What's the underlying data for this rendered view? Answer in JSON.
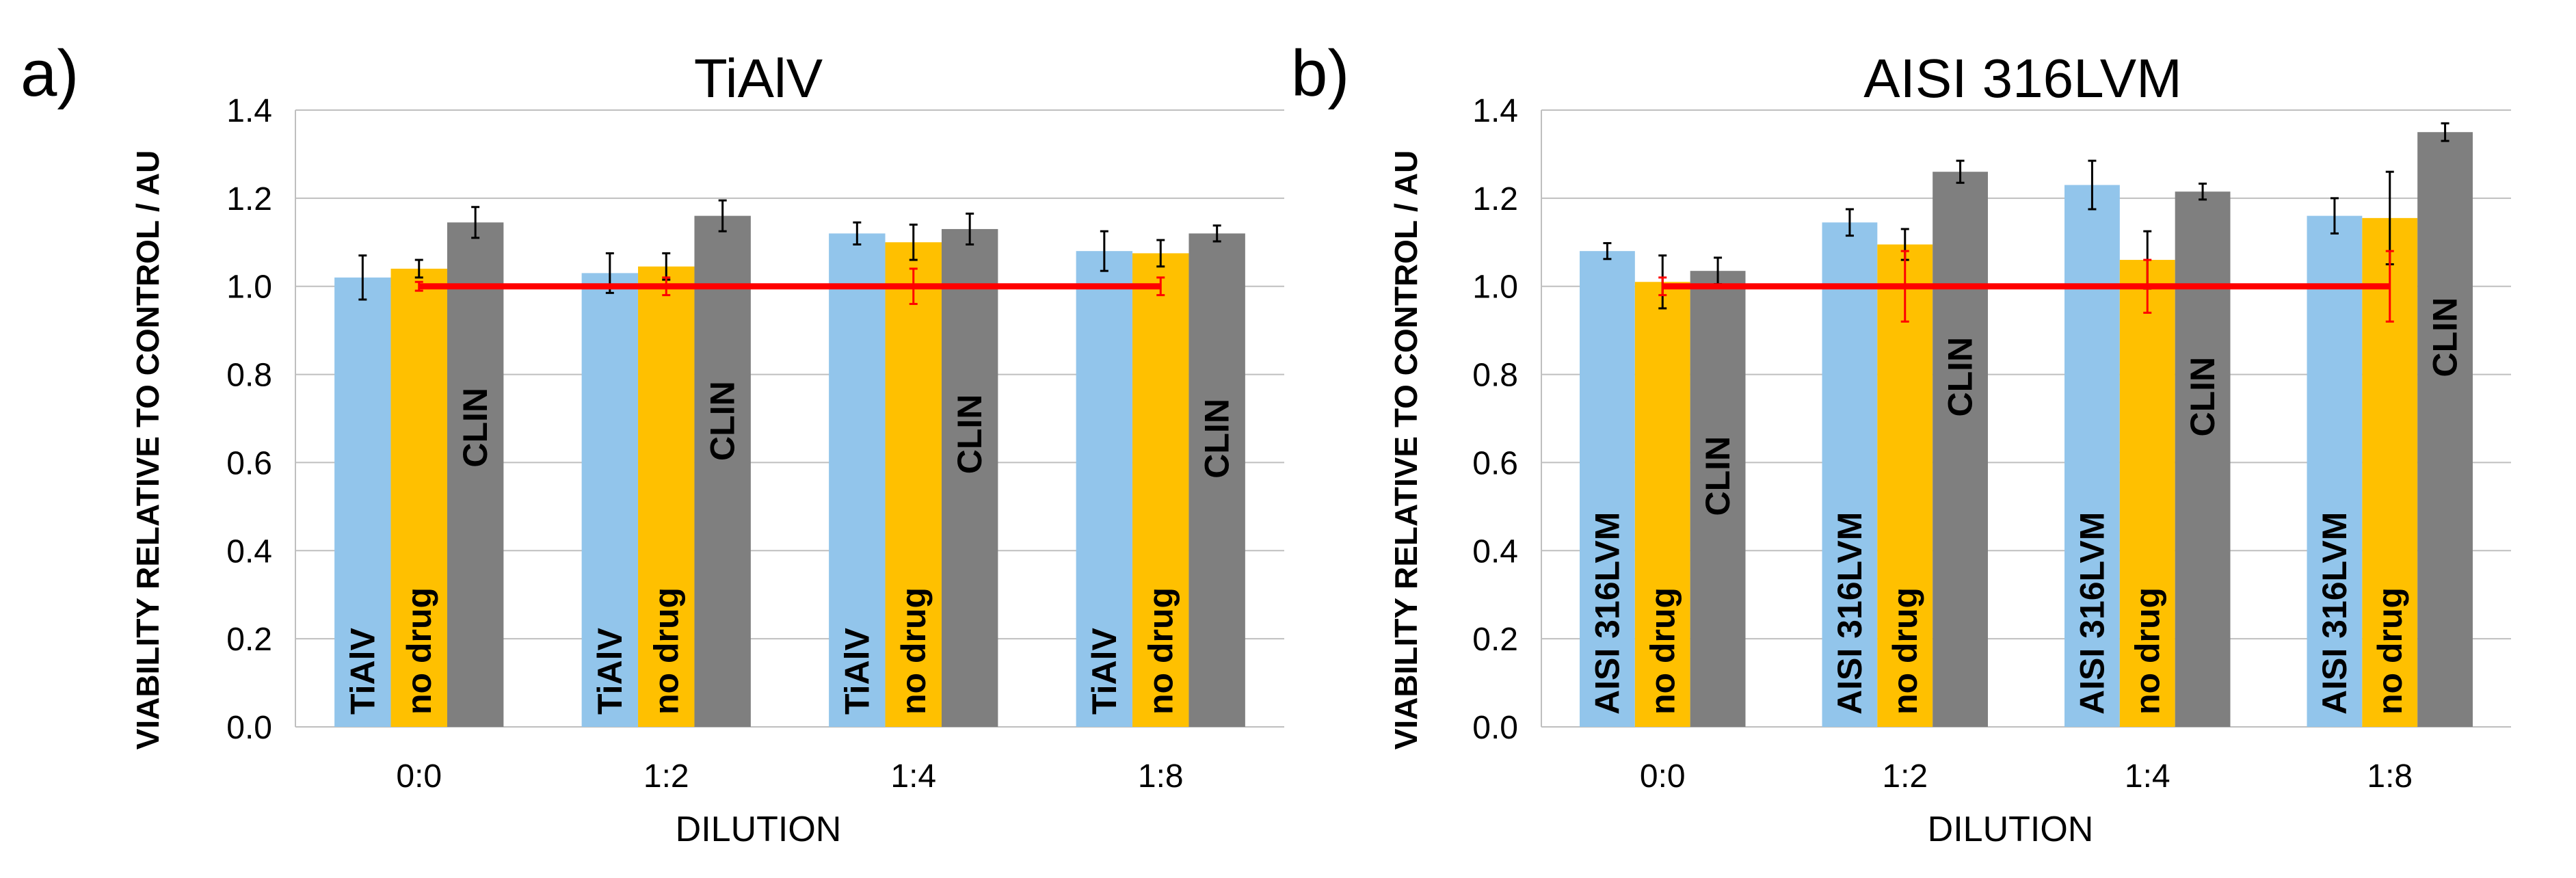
{
  "panels": [
    {
      "letter": "a)"
    },
    {
      "letter": "b)"
    }
  ],
  "colors": {
    "series": [
      "#92c5eb",
      "#ffc000",
      "#7f7f7f"
    ],
    "reference": "#ff0000",
    "grid": "#bfbfbf",
    "error_bar": "#000000",
    "reference_error_bar": "#ff0000"
  },
  "chart_data": [
    {
      "type": "bar",
      "title": "TiAlV",
      "xlabel": "DILUTION",
      "ylabel": "VIABILITY RELATIVE TO CONTROL / AU",
      "ylim": [
        0,
        1.4
      ],
      "yticks": [
        "0.0",
        "0.2",
        "0.4",
        "0.6",
        "0.8",
        "1.0",
        "1.2",
        "1.4"
      ],
      "categories": [
        "0:0",
        "1:2",
        "1:4",
        "1:8"
      ],
      "series": [
        {
          "name": "TiAlV",
          "values": [
            1.02,
            1.03,
            1.12,
            1.08
          ],
          "errors": [
            0.05,
            0.045,
            0.025,
            0.045
          ]
        },
        {
          "name": "no drug",
          "values": [
            1.04,
            1.045,
            1.1,
            1.075
          ],
          "errors": [
            0.02,
            0.03,
            0.04,
            0.03
          ]
        },
        {
          "name": "CLIN",
          "values": [
            1.145,
            1.16,
            1.13,
            1.12
          ],
          "errors": [
            0.035,
            0.035,
            0.035,
            0.018
          ]
        }
      ],
      "reference_line": {
        "value": 1.0,
        "errors": [
          0.01,
          0.02,
          0.04,
          0.02
        ]
      }
    },
    {
      "type": "bar",
      "title": "AISI 316LVM",
      "xlabel": "DILUTION",
      "ylabel": "VIABILITY RELATIVE TO CONTROL / AU",
      "ylim": [
        0,
        1.4
      ],
      "yticks": [
        "0.0",
        "0.2",
        "0.4",
        "0.6",
        "0.8",
        "1.0",
        "1.2",
        "1.4"
      ],
      "categories": [
        "0:0",
        "1:2",
        "1:4",
        "1:8"
      ],
      "series": [
        {
          "name": "AISI 316LVM",
          "values": [
            1.08,
            1.145,
            1.23,
            1.16
          ],
          "errors": [
            0.018,
            0.03,
            0.055,
            0.04
          ]
        },
        {
          "name": "no drug",
          "values": [
            1.01,
            1.095,
            1.06,
            1.155
          ],
          "errors": [
            0.06,
            0.035,
            0.065,
            0.105
          ]
        },
        {
          "name": "CLIN",
          "values": [
            1.035,
            1.26,
            1.215,
            1.35
          ],
          "errors": [
            0.03,
            0.025,
            0.018,
            0.02
          ]
        }
      ],
      "reference_line": {
        "value": 1.0,
        "errors": [
          0.02,
          0.08,
          0.06,
          0.08
        ]
      }
    }
  ]
}
